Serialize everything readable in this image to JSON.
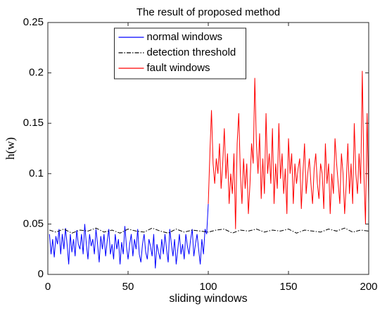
{
  "chart_data": {
    "type": "line",
    "title": "The result of proposed method",
    "xlabel": "sliding windows",
    "ylabel": "h(w)",
    "xlim": [
      0,
      200
    ],
    "xticks": [
      0,
      50,
      100,
      150,
      200
    ],
    "ylim": [
      0,
      0.25
    ],
    "yticks": [
      0,
      0.05,
      0.1,
      0.15,
      0.2,
      0.25
    ],
    "legend": "upper center",
    "series": [
      {
        "name": "normal windows",
        "color": "#0000ff",
        "style": "solid",
        "x": [
          1,
          2,
          3,
          4,
          5,
          6,
          7,
          8,
          9,
          10,
          11,
          12,
          13,
          14,
          15,
          16,
          17,
          18,
          19,
          20,
          21,
          22,
          23,
          24,
          25,
          26,
          27,
          28,
          29,
          30,
          31,
          32,
          33,
          34,
          35,
          36,
          37,
          38,
          39,
          40,
          41,
          42,
          43,
          44,
          45,
          46,
          47,
          48,
          49,
          50,
          51,
          52,
          53,
          54,
          55,
          56,
          57,
          58,
          59,
          60,
          61,
          62,
          63,
          64,
          65,
          66,
          67,
          68,
          69,
          70,
          71,
          72,
          73,
          74,
          75,
          76,
          77,
          78,
          79,
          80,
          81,
          82,
          83,
          84,
          85,
          86,
          87,
          88,
          89,
          90,
          91,
          92,
          93,
          94,
          95,
          96,
          97,
          98,
          99,
          100
        ],
        "values": [
          0.04,
          0.02,
          0.035,
          0.017,
          0.038,
          0.03,
          0.045,
          0.02,
          0.04,
          0.025,
          0.046,
          0.03,
          0.01,
          0.04,
          0.022,
          0.035,
          0.018,
          0.044,
          0.03,
          0.025,
          0.04,
          0.02,
          0.05,
          0.03,
          0.015,
          0.04,
          0.028,
          0.035,
          0.02,
          0.045,
          0.03,
          0.012,
          0.038,
          0.025,
          0.04,
          0.018,
          0.033,
          0.045,
          0.02,
          0.03,
          0.015,
          0.04,
          0.025,
          0.035,
          0.01,
          0.032,
          0.02,
          0.048,
          0.028,
          0.015,
          0.03,
          0.04,
          0.018,
          0.035,
          0.025,
          0.045,
          0.02,
          0.012,
          0.03,
          0.04,
          0.022,
          0.015,
          0.035,
          0.028,
          0.018,
          0.04,
          0.006,
          0.03,
          0.022,
          0.015,
          0.035,
          0.02,
          0.04,
          0.025,
          0.012,
          0.045,
          0.03,
          0.018,
          0.035,
          0.01,
          0.025,
          0.04,
          0.02,
          0.03,
          0.015,
          0.04,
          0.028,
          0.02,
          0.035,
          0.045,
          0.018,
          0.03,
          0.04,
          0.025,
          0.01,
          0.035,
          0.02,
          0.045,
          0.04,
          0.07
        ]
      },
      {
        "name": "detection threshold",
        "color": "#000000",
        "style": "dashdot",
        "x": [
          1,
          5,
          10,
          15,
          20,
          25,
          30,
          35,
          40,
          45,
          50,
          55,
          60,
          65,
          70,
          75,
          80,
          85,
          90,
          95,
          100,
          105,
          110,
          115,
          120,
          125,
          130,
          135,
          140,
          145,
          150,
          155,
          160,
          165,
          170,
          175,
          180,
          185,
          190,
          195,
          200
        ],
        "values": [
          0.044,
          0.042,
          0.045,
          0.041,
          0.044,
          0.043,
          0.046,
          0.042,
          0.044,
          0.041,
          0.045,
          0.043,
          0.042,
          0.046,
          0.043,
          0.041,
          0.045,
          0.042,
          0.044,
          0.043,
          0.042,
          0.044,
          0.045,
          0.041,
          0.044,
          0.043,
          0.045,
          0.042,
          0.044,
          0.043,
          0.045,
          0.041,
          0.044,
          0.043,
          0.042,
          0.045,
          0.043,
          0.046,
          0.042,
          0.044,
          0.043
        ]
      },
      {
        "name": "fault windows",
        "color": "#ff0000",
        "style": "solid",
        "x": [
          100,
          101,
          102,
          103,
          104,
          105,
          106,
          107,
          108,
          109,
          110,
          111,
          112,
          113,
          114,
          115,
          116,
          117,
          118,
          119,
          120,
          121,
          122,
          123,
          124,
          125,
          126,
          127,
          128,
          129,
          130,
          131,
          132,
          133,
          134,
          135,
          136,
          137,
          138,
          139,
          140,
          141,
          142,
          143,
          144,
          145,
          146,
          147,
          148,
          149,
          150,
          151,
          152,
          153,
          154,
          155,
          156,
          157,
          158,
          159,
          160,
          161,
          162,
          163,
          164,
          165,
          166,
          167,
          168,
          169,
          170,
          171,
          172,
          173,
          174,
          175,
          176,
          177,
          178,
          179,
          180,
          181,
          182,
          183,
          184,
          185,
          186,
          187,
          188,
          189,
          190,
          191,
          192,
          193,
          194,
          195,
          196,
          197,
          198,
          199,
          200
        ],
        "values": [
          0.07,
          0.12,
          0.163,
          0.11,
          0.09,
          0.115,
          0.1,
          0.13,
          0.085,
          0.11,
          0.145,
          0.095,
          0.12,
          0.07,
          0.1,
          0.08,
          0.12,
          0.045,
          0.13,
          0.16,
          0.1,
          0.07,
          0.115,
          0.085,
          0.11,
          0.06,
          0.09,
          0.13,
          0.11,
          0.195,
          0.13,
          0.1,
          0.14,
          0.075,
          0.115,
          0.08,
          0.16,
          0.1,
          0.12,
          0.09,
          0.145,
          0.07,
          0.11,
          0.085,
          0.15,
          0.095,
          0.12,
          0.08,
          0.105,
          0.06,
          0.135,
          0.1,
          0.12,
          0.07,
          0.11,
          0.09,
          0.105,
          0.115,
          0.065,
          0.1,
          0.13,
          0.08,
          0.1,
          0.115,
          0.09,
          0.07,
          0.105,
          0.12,
          0.09,
          0.075,
          0.11,
          0.1,
          0.065,
          0.13,
          0.09,
          0.11,
          0.06,
          0.1,
          0.08,
          0.135,
          0.11,
          0.09,
          0.07,
          0.12,
          0.1,
          0.06,
          0.09,
          0.13,
          0.08,
          0.11,
          0.07,
          0.15,
          0.1,
          0.08,
          0.12,
          0.09,
          0.202,
          0.1,
          0.05,
          0.16,
          0.07
        ]
      }
    ]
  }
}
